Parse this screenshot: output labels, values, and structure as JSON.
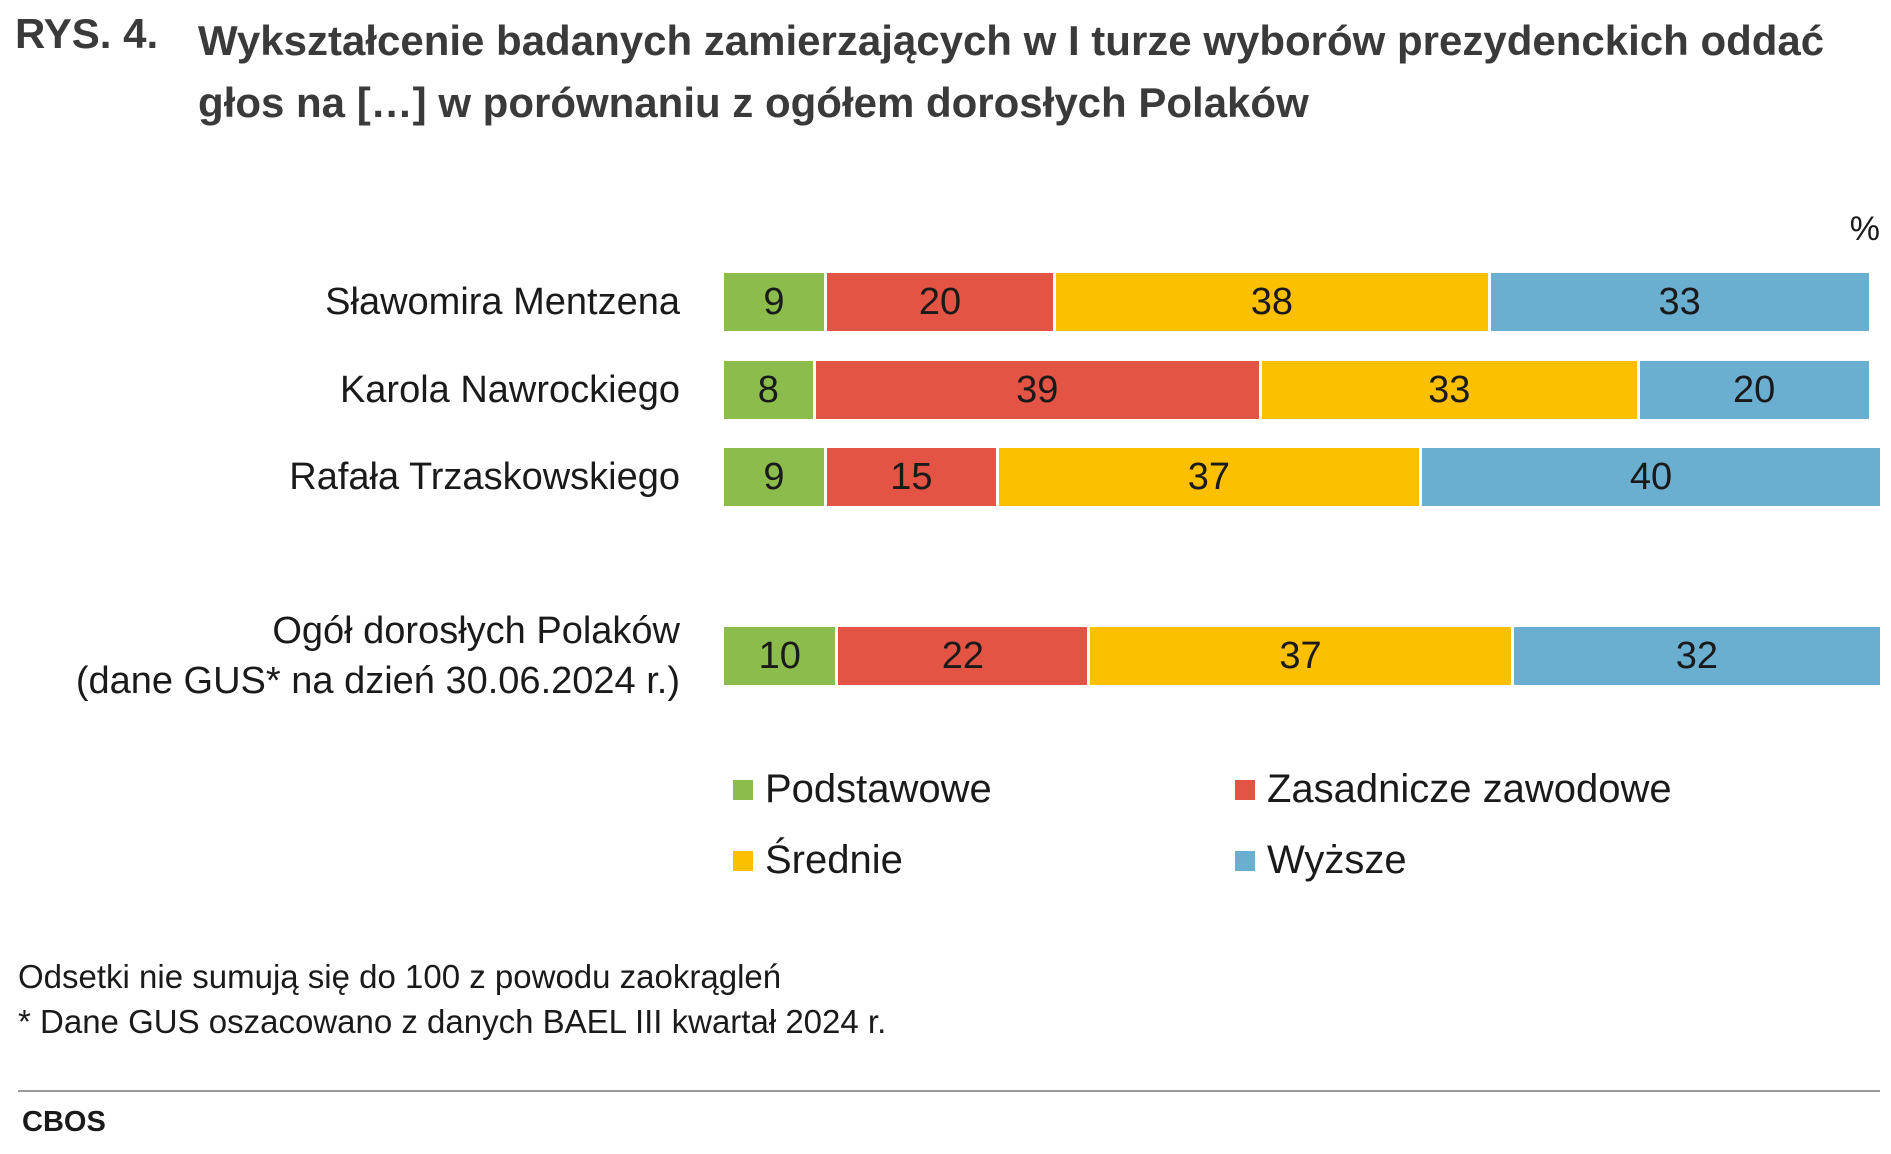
{
  "chart_data": {
    "type": "bar",
    "orientation": "horizontal",
    "stacked": true,
    "figure_label": "RYS. 4.",
    "title": "Wykształcenie badanych zamierzających w I turze wyborów prezydenckich oddać głos na […] w porównaniu z ogółem dorosłych Polaków",
    "unit_label": "%",
    "categories": [
      "Sławomira Mentzena",
      "Karola Nawrockiego",
      "Rafała Trzaskowskiego",
      "Ogół dorosłych Polaków\n(dane GUS* na dzień 30.06.2024 r.)"
    ],
    "series": [
      {
        "name": "Podstawowe",
        "color": "#8cbd4c",
        "values": [
          9,
          8,
          9,
          10
        ]
      },
      {
        "name": "Zasadnicze zawodowe",
        "color": "#e45444",
        "values": [
          20,
          39,
          15,
          22
        ]
      },
      {
        "name": "Średnie",
        "color": "#fcc000",
        "values": [
          38,
          33,
          37,
          37
        ]
      },
      {
        "name": "Wyższe",
        "color": "#6aaed0",
        "values": [
          33,
          20,
          40,
          32
        ]
      }
    ],
    "notes": [
      "Odsetki nie sumują się do 100 z powodu zaokrągleń",
      "* Dane GUS oszacowano z danych BAEL III kwartał 2024 r."
    ],
    "source": "CBOS"
  }
}
